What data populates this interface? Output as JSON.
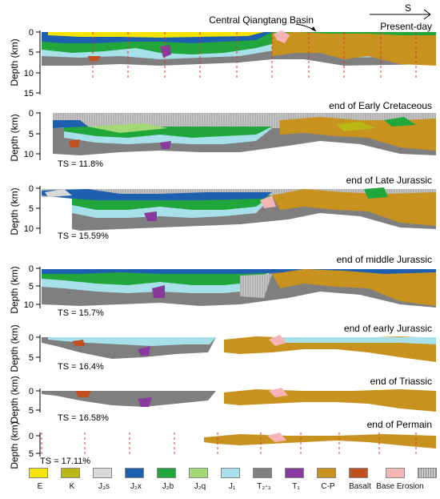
{
  "basin_label": "Central Qiangtang Basin",
  "direction_label": "S",
  "y_axis_label": "Depth (km)",
  "panels": [
    {
      "title": "Present-day",
      "ticks": [
        "0",
        "5",
        "10",
        "15"
      ],
      "ts": ""
    },
    {
      "title": "end of Early Cretaceous",
      "ticks": [
        "0",
        "5",
        "10"
      ],
      "ts": "TS = 11.8%"
    },
    {
      "title": "end of Late Jurassic",
      "ticks": [
        "0",
        "5",
        "10"
      ],
      "ts": "TS = 15.59%"
    },
    {
      "title": "end of middle Jurassic",
      "ticks": [
        "0",
        "5",
        "10"
      ],
      "ts": "TS = 15.7%"
    },
    {
      "title": "end of early Jurassic",
      "ticks": [
        "0",
        "5"
      ],
      "ts": "TS = 16.4%"
    },
    {
      "title": "end of Triassic",
      "ticks": [
        "0",
        "5"
      ],
      "ts": "TS = 16.58%"
    },
    {
      "title": "end of Permain",
      "ticks": [
        "0",
        "5"
      ],
      "ts": "TS = 17.11%"
    }
  ],
  "legend": [
    {
      "label": "E",
      "color": "#f5e400"
    },
    {
      "label": "K",
      "color": "#b9b816"
    },
    {
      "label": "J₃s",
      "color": "#d9d9d9"
    },
    {
      "label": "J₂x",
      "color": "#1f5fb0"
    },
    {
      "label": "J₂b",
      "color": "#21a63b"
    },
    {
      "label": "J₂q",
      "color": "#a3d977"
    },
    {
      "label": "J₁",
      "color": "#a8e0ea"
    },
    {
      "label": "T₂-₃",
      "color": "#7f7f7f"
    },
    {
      "label": "T₁",
      "color": "#8a3a9e"
    },
    {
      "label": "C-P",
      "color": "#c8921f"
    },
    {
      "label": "Basalt",
      "color": "#c0501f"
    },
    {
      "label": "Base Erosion",
      "color": "#f6b5b5"
    },
    {
      "label": "",
      "color": "#b8b8b8"
    }
  ]
}
